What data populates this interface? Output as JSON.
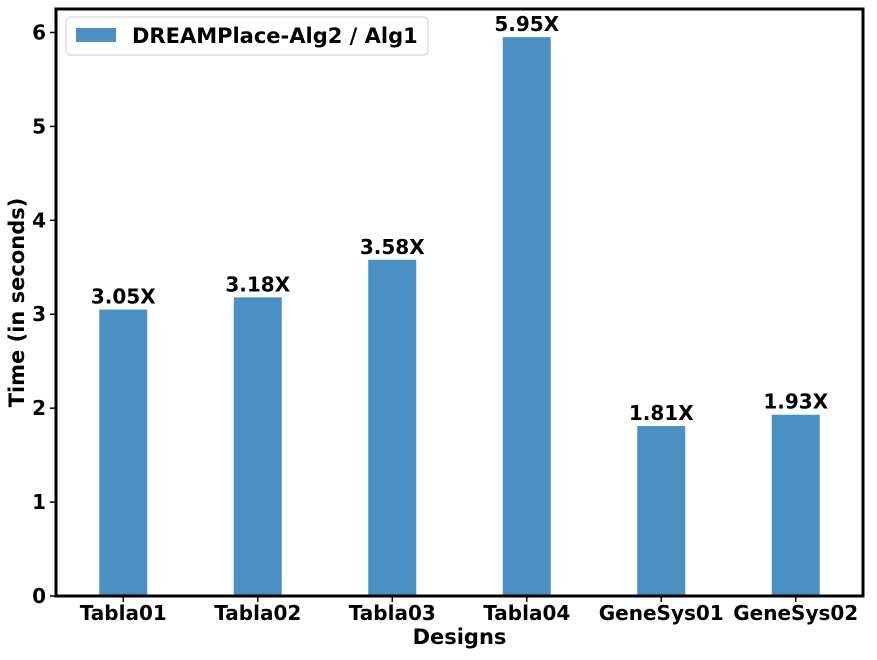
{
  "chart_data": {
    "type": "bar",
    "xlabel": "Designs",
    "ylabel": "Time (in seconds)",
    "categories": [
      "Tabla01",
      "Tabla02",
      "Tabla03",
      "Tabla04",
      "GeneSys01",
      "GeneSys02"
    ],
    "series": [
      {
        "name": "DREAMPlace-Alg2 / Alg1",
        "values": [
          3.05,
          3.18,
          3.58,
          5.95,
          1.81,
          1.93
        ],
        "labels": [
          "3.05X",
          "3.18X",
          "3.58X",
          "5.95X",
          "1.81X",
          "1.93X"
        ],
        "color": "#4a90c2"
      }
    ],
    "ylim": [
      0,
      6.25
    ],
    "yticks": [
      0,
      1,
      2,
      3,
      4,
      5,
      6
    ],
    "grid": false,
    "legend_position": "top-left"
  }
}
